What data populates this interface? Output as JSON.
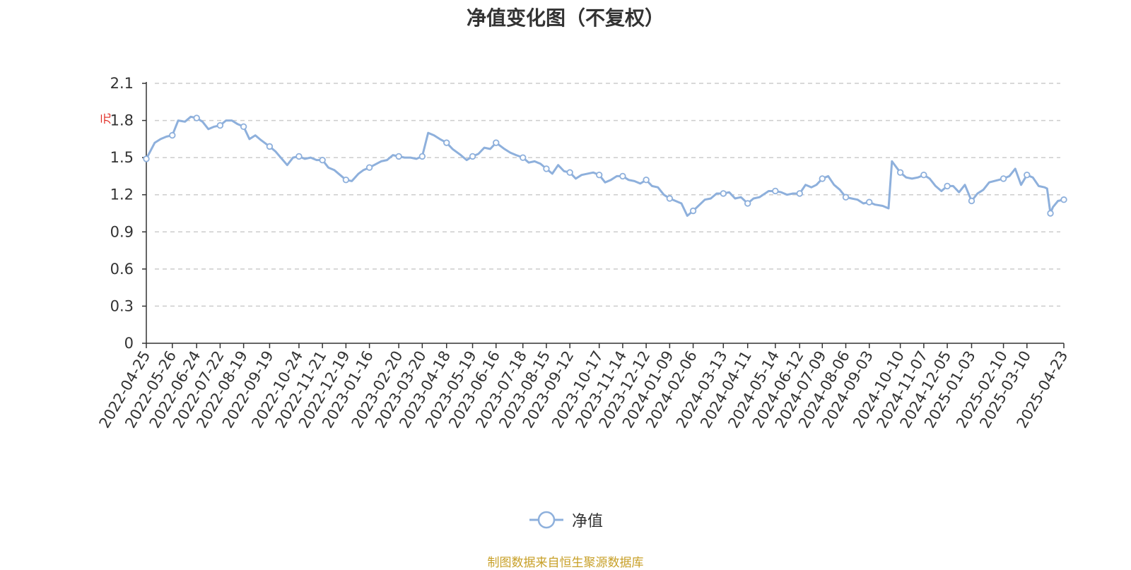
{
  "chart_data": {
    "type": "line",
    "title": "净值变化图（不复权）",
    "ylabel": "元",
    "ylim": [
      0,
      2.1
    ],
    "yticks": [
      "0",
      "0.3",
      "0.6",
      "0.9",
      "1.2",
      "1.5",
      "1.8",
      "2.1"
    ],
    "grid": true,
    "legend_position": "bottom",
    "x_tick_labels": [
      "2022-04-25",
      "2022-05-26",
      "2022-06-24",
      "2022-07-22",
      "2022-08-19",
      "2022-09-19",
      "2022-10-24",
      "2022-11-21",
      "2022-12-19",
      "2023-01-16",
      "2023-02-20",
      "2023-03-20",
      "2023-04-18",
      "2023-05-19",
      "2023-06-16",
      "2023-07-18",
      "2023-08-15",
      "2023-09-12",
      "2023-10-17",
      "2023-11-14",
      "2023-12-12",
      "2024-01-09",
      "2024-02-06",
      "2024-03-13",
      "2024-04-11",
      "2024-05-14",
      "2024-06-12",
      "2024-07-09",
      "2024-08-06",
      "2024-09-03",
      "2024-10-10",
      "2024-11-07",
      "2024-12-05",
      "2025-01-03",
      "2025-02-10",
      "2025-03-10",
      "2025-04-23"
    ],
    "series": [
      {
        "name": "净值",
        "color": "#8eb0dc",
        "x": [
          "2022-04-25",
          "2022-05-05",
          "2022-05-12",
          "2022-05-19",
          "2022-05-26",
          "2022-06-02",
          "2022-06-10",
          "2022-06-17",
          "2022-06-24",
          "2022-07-01",
          "2022-07-08",
          "2022-07-15",
          "2022-07-22",
          "2022-07-29",
          "2022-08-05",
          "2022-08-12",
          "2022-08-19",
          "2022-08-26",
          "2022-09-02",
          "2022-09-09",
          "2022-09-19",
          "2022-09-26",
          "2022-10-10",
          "2022-10-17",
          "2022-10-24",
          "2022-10-31",
          "2022-11-07",
          "2022-11-14",
          "2022-11-21",
          "2022-11-28",
          "2022-12-05",
          "2022-12-12",
          "2022-12-19",
          "2022-12-26",
          "2023-01-03",
          "2023-01-09",
          "2023-01-16",
          "2023-01-30",
          "2023-02-06",
          "2023-02-13",
          "2023-02-20",
          "2023-02-27",
          "2023-03-06",
          "2023-03-13",
          "2023-03-20",
          "2023-03-27",
          "2023-04-03",
          "2023-04-10",
          "2023-04-18",
          "2023-04-25",
          "2023-05-05",
          "2023-05-12",
          "2023-05-19",
          "2023-05-26",
          "2023-06-02",
          "2023-06-09",
          "2023-06-16",
          "2023-06-26",
          "2023-07-03",
          "2023-07-10",
          "2023-07-18",
          "2023-07-25",
          "2023-08-01",
          "2023-08-08",
          "2023-08-15",
          "2023-08-22",
          "2023-08-29",
          "2023-09-05",
          "2023-09-12",
          "2023-09-19",
          "2023-09-26",
          "2023-10-10",
          "2023-10-17",
          "2023-10-24",
          "2023-10-31",
          "2023-11-07",
          "2023-11-14",
          "2023-11-21",
          "2023-11-28",
          "2023-12-05",
          "2023-12-12",
          "2023-12-19",
          "2023-12-26",
          "2024-01-02",
          "2024-01-09",
          "2024-01-16",
          "2024-01-23",
          "2024-01-30",
          "2024-02-06",
          "2024-02-20",
          "2024-02-27",
          "2024-03-05",
          "2024-03-13",
          "2024-03-20",
          "2024-03-27",
          "2024-04-03",
          "2024-04-11",
          "2024-04-18",
          "2024-04-25",
          "2024-05-06",
          "2024-05-14",
          "2024-05-21",
          "2024-05-28",
          "2024-06-04",
          "2024-06-12",
          "2024-06-19",
          "2024-06-26",
          "2024-07-02",
          "2024-07-09",
          "2024-07-16",
          "2024-07-23",
          "2024-07-30",
          "2024-08-06",
          "2024-08-13",
          "2024-08-20",
          "2024-08-27",
          "2024-09-03",
          "2024-09-10",
          "2024-09-19",
          "2024-09-26",
          "2024-09-30",
          "2024-10-10",
          "2024-10-17",
          "2024-10-24",
          "2024-10-31",
          "2024-11-07",
          "2024-11-14",
          "2024-11-21",
          "2024-11-28",
          "2024-12-05",
          "2024-12-12",
          "2024-12-19",
          "2024-12-26",
          "2025-01-03",
          "2025-01-10",
          "2025-01-17",
          "2025-01-24",
          "2025-02-10",
          "2025-02-17",
          "2025-02-24",
          "2025-03-03",
          "2025-03-10",
          "2025-03-17",
          "2025-03-24",
          "2025-03-31",
          "2025-04-03",
          "2025-04-07",
          "2025-04-10",
          "2025-04-16",
          "2025-04-23"
        ],
        "values": [
          1.49,
          1.62,
          1.65,
          1.67,
          1.68,
          1.8,
          1.79,
          1.83,
          1.82,
          1.79,
          1.73,
          1.75,
          1.76,
          1.8,
          1.8,
          1.77,
          1.75,
          1.65,
          1.68,
          1.64,
          1.59,
          1.55,
          1.44,
          1.5,
          1.51,
          1.49,
          1.5,
          1.48,
          1.48,
          1.42,
          1.4,
          1.36,
          1.32,
          1.31,
          1.37,
          1.4,
          1.42,
          1.47,
          1.48,
          1.52,
          1.51,
          1.5,
          1.5,
          1.49,
          1.51,
          1.7,
          1.68,
          1.65,
          1.62,
          1.57,
          1.52,
          1.48,
          1.51,
          1.53,
          1.58,
          1.57,
          1.62,
          1.57,
          1.54,
          1.52,
          1.5,
          1.46,
          1.47,
          1.45,
          1.41,
          1.37,
          1.44,
          1.39,
          1.38,
          1.33,
          1.36,
          1.38,
          1.36,
          1.3,
          1.32,
          1.35,
          1.35,
          1.32,
          1.31,
          1.29,
          1.32,
          1.27,
          1.26,
          1.2,
          1.17,
          1.15,
          1.13,
          1.03,
          1.07,
          1.16,
          1.17,
          1.21,
          1.21,
          1.22,
          1.17,
          1.18,
          1.13,
          1.17,
          1.18,
          1.23,
          1.23,
          1.22,
          1.2,
          1.21,
          1.21,
          1.28,
          1.26,
          1.28,
          1.33,
          1.35,
          1.28,
          1.24,
          1.18,
          1.17,
          1.16,
          1.13,
          1.14,
          1.12,
          1.11,
          1.09,
          1.47,
          1.38,
          1.34,
          1.33,
          1.34,
          1.36,
          1.33,
          1.27,
          1.23,
          1.27,
          1.27,
          1.22,
          1.28,
          1.15,
          1.21,
          1.24,
          1.3,
          1.33,
          1.35,
          1.41,
          1.28,
          1.36,
          1.34,
          1.27,
          1.26,
          1.25,
          1.05,
          1.1,
          1.15,
          1.16
        ]
      }
    ],
    "marker_dates": [
      "2022-04-25",
      "2022-05-26",
      "2022-06-24",
      "2022-07-22",
      "2022-08-19",
      "2022-09-19",
      "2022-10-24",
      "2022-11-21",
      "2022-12-19",
      "2023-01-16",
      "2023-02-20",
      "2023-03-20",
      "2023-04-18",
      "2023-05-19",
      "2023-06-16",
      "2023-07-18",
      "2023-08-15",
      "2023-09-12",
      "2023-10-17",
      "2023-11-14",
      "2023-12-12",
      "2024-01-09",
      "2024-02-06",
      "2024-03-13",
      "2024-04-11",
      "2024-05-14",
      "2024-06-12",
      "2024-07-09",
      "2024-08-06",
      "2024-09-03",
      "2024-10-10",
      "2024-11-07",
      "2024-12-05",
      "2025-01-03",
      "2025-02-10",
      "2025-03-10",
      "2025-04-07",
      "2025-04-23"
    ]
  },
  "legend": {
    "label": "净值"
  },
  "footer": {
    "source": "制图数据来自恒生聚源数据库"
  }
}
